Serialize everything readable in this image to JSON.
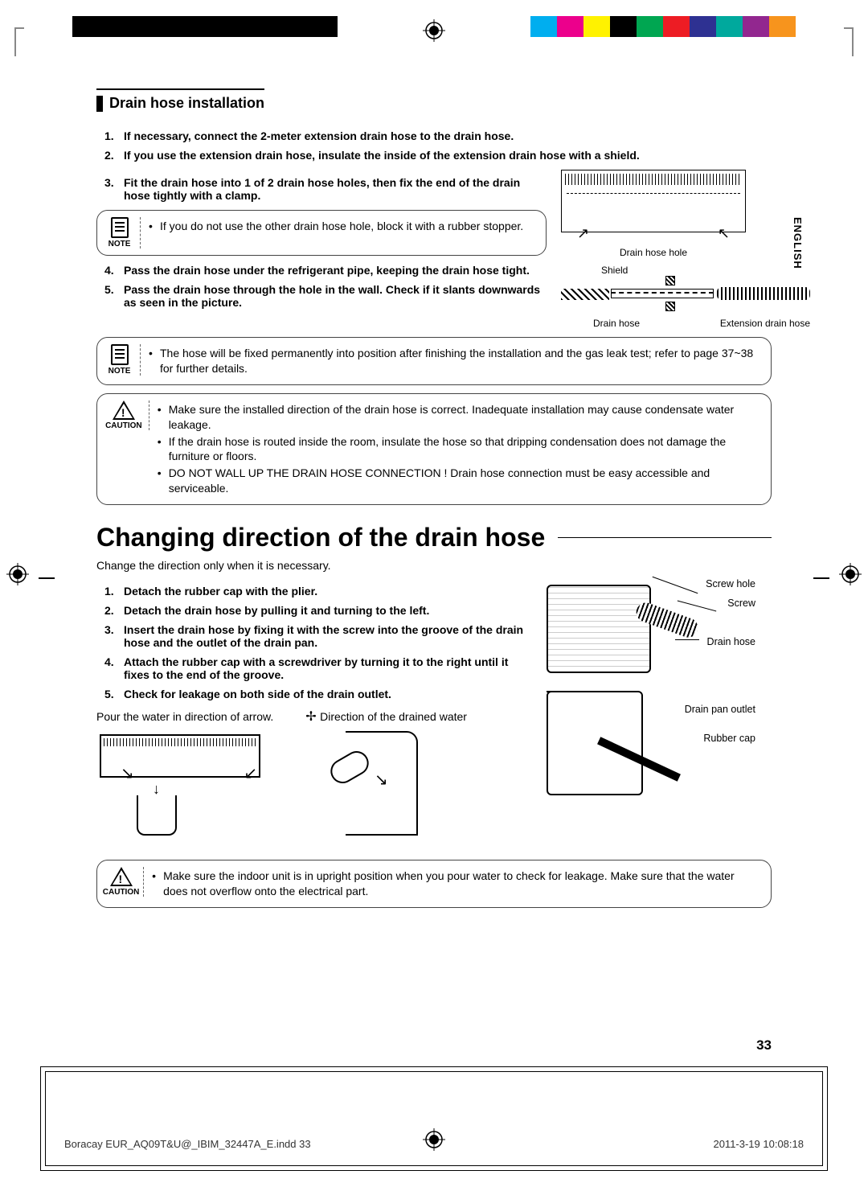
{
  "registration_colors": [
    "#00aeef",
    "#ec008c",
    "#fff200",
    "#000000",
    "#00a651",
    "#ed1c24",
    "#2e3192",
    "#00a99d",
    "#92278f",
    "#f7941d"
  ],
  "language_tab": "ENGLISH",
  "section1": {
    "title": "Drain hose installation",
    "steps": [
      "If necessary, connect the 2-meter extension drain hose to the drain hose.",
      "If you use the extension drain hose, insulate the inside of the extension drain hose with a shield.",
      "Fit the drain hose into 1 of 2 drain hose holes, then fix the end of the drain hose tightly with a clamp.",
      "Pass the drain hose under the refrigerant pipe, keeping the drain hose tight.",
      "Pass the drain hose through the hole in the wall. Check if it slants downwards as seen in the picture."
    ],
    "note1_label": "NOTE",
    "note1": "If you do not use the other drain hose hole, block it with a rubber stopper.",
    "note2_label": "NOTE",
    "note2": "The hose will be fixed permanently into position after finishing the installation and the gas leak test; refer to page 37~38 for further details.",
    "caution_label": "CAUTION",
    "caution_items": [
      "Make sure the installed direction of the drain hose is correct. Inadequate installation may cause condensate water leakage.",
      "If the drain hose is routed inside the room, insulate the hose so that dripping condensation does not damage the furniture or floors.",
      "DO NOT WALL UP THE DRAIN HOSE CONNECTION ! Drain hose connection must be easy accessible and serviceable."
    ],
    "fig_unit_label": "Drain hose hole",
    "fig_hose_labels": {
      "shield": "Shield",
      "drain": "Drain hose",
      "ext": "Extension drain hose"
    }
  },
  "section2": {
    "title": "Changing direction of the drain hose",
    "intro": "Change the direction only when it is necessary.",
    "steps": [
      "Detach the rubber cap with the plier.",
      "Detach the drain hose by pulling it and turning to the left.",
      "Insert the drain hose by fixing it with the screw into the groove of the drain hose and the outlet of the drain pan.",
      "Attach the rubber cap with a screwdriver by turning it to the right until it fixes to the end of the groove.",
      "Check for leakage on both side of the drain outlet."
    ],
    "pour_text": "Pour the water in direction of arrow.",
    "direction_text": "Direction of the drained water",
    "callouts": {
      "screw_hole": "Screw hole",
      "screw": "Screw",
      "drain_hose": "Drain hose",
      "drain_pan_outlet": "Drain pan outlet",
      "rubber_cap": "Rubber cap"
    },
    "caution_label": "CAUTION",
    "caution_items": [
      "Make sure the indoor unit is in upright position when you pour water to check for leakage. Make sure that the water does not overflow onto the electrical part."
    ]
  },
  "page_number": "33",
  "footer": {
    "file": "Boracay EUR_AQ09T&U@_IBIM_32447A_E.indd   33",
    "date": "2011-3-19   10:08:18"
  }
}
